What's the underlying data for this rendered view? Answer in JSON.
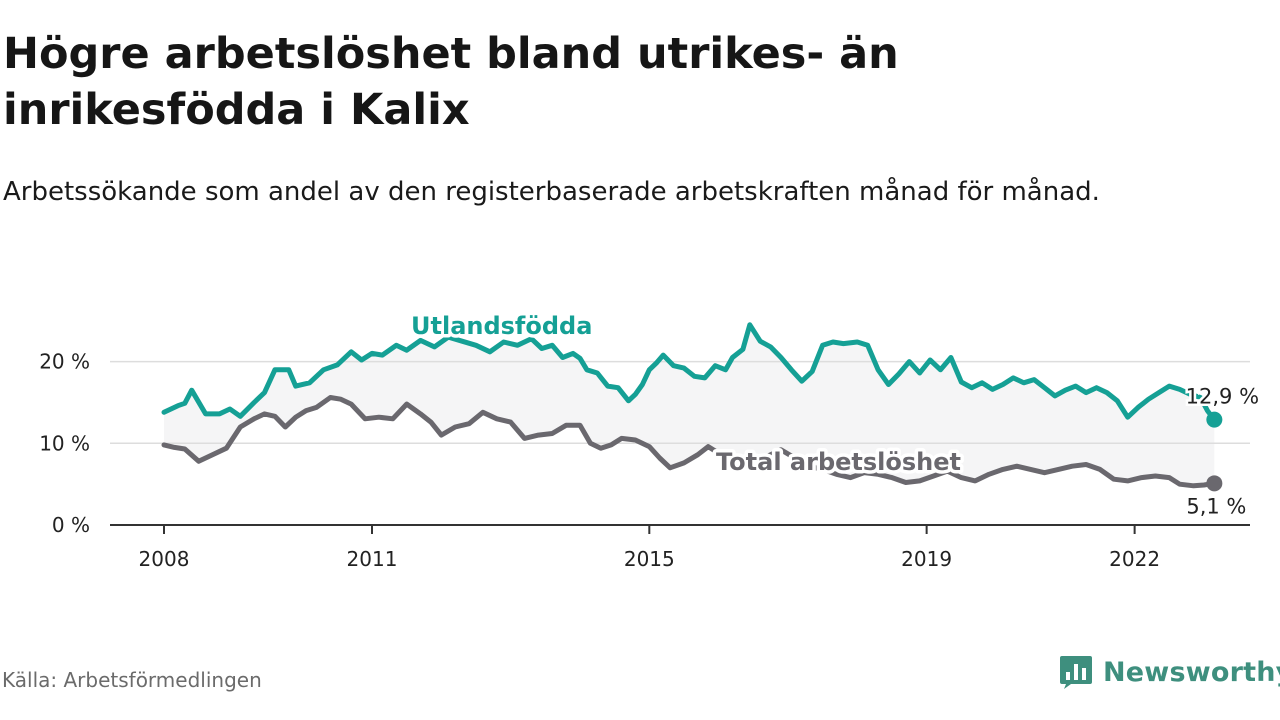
{
  "title": "Högre arbetslöshet bland utrikes- än inrikesfödda i Kalix",
  "subtitle": "Arbetssökande som andel av den registerbaserade arbetskraften månad för månad.",
  "source": "Källa: Arbetsförmedlingen",
  "brand": "Newsworthy",
  "colors": {
    "foreign": "#15A095",
    "total": "#6A686E",
    "band": "#F5F5F6",
    "grid": "#DDDDDD",
    "axis": "#333333",
    "brand": "#3E8F7E"
  },
  "chart_data": {
    "type": "line",
    "title": "Högre arbetslöshet bland utrikes- än inrikesfödda i Kalix",
    "xlabel": "",
    "ylabel": "",
    "xlim": [
      2008,
      2023.15
    ],
    "ylim": [
      0,
      25
    ],
    "x_ticks": [
      2008,
      2011,
      2015,
      2019,
      2022
    ],
    "y_ticks": [
      0,
      10,
      20
    ],
    "y_tick_labels": [
      "0 %",
      "10 %",
      "20 %"
    ],
    "grid": true,
    "series": [
      {
        "name": "Utlandsfödda",
        "key": "foreign",
        "end_label": "12,9 %",
        "points": [
          [
            2008.0,
            13.8
          ],
          [
            2008.2,
            14.6
          ],
          [
            2008.3,
            14.9
          ],
          [
            2008.4,
            16.5
          ],
          [
            2008.6,
            13.6
          ],
          [
            2008.8,
            13.6
          ],
          [
            2008.95,
            14.2
          ],
          [
            2009.1,
            13.3
          ],
          [
            2009.3,
            15.0
          ],
          [
            2009.45,
            16.2
          ],
          [
            2009.6,
            19.0
          ],
          [
            2009.8,
            19.0
          ],
          [
            2009.9,
            17.0
          ],
          [
            2010.1,
            17.4
          ],
          [
            2010.3,
            19.0
          ],
          [
            2010.5,
            19.6
          ],
          [
            2010.7,
            21.2
          ],
          [
            2010.85,
            20.2
          ],
          [
            2011.0,
            21.0
          ],
          [
            2011.15,
            20.8
          ],
          [
            2011.35,
            22.0
          ],
          [
            2011.5,
            21.4
          ],
          [
            2011.7,
            22.6
          ],
          [
            2011.9,
            21.8
          ],
          [
            2012.1,
            23.0
          ],
          [
            2012.3,
            22.5
          ],
          [
            2012.5,
            22.0
          ],
          [
            2012.7,
            21.2
          ],
          [
            2012.9,
            22.4
          ],
          [
            2013.1,
            22.0
          ],
          [
            2013.3,
            22.8
          ],
          [
            2013.45,
            21.6
          ],
          [
            2013.6,
            22.0
          ],
          [
            2013.75,
            20.5
          ],
          [
            2013.9,
            21.0
          ],
          [
            2014.0,
            20.4
          ],
          [
            2014.1,
            19.0
          ],
          [
            2014.25,
            18.6
          ],
          [
            2014.4,
            17.0
          ],
          [
            2014.55,
            16.8
          ],
          [
            2014.7,
            15.2
          ],
          [
            2014.8,
            16.0
          ],
          [
            2014.9,
            17.2
          ],
          [
            2015.0,
            19.0
          ],
          [
            2015.1,
            19.8
          ],
          [
            2015.2,
            20.8
          ],
          [
            2015.35,
            19.5
          ],
          [
            2015.5,
            19.2
          ],
          [
            2015.65,
            18.2
          ],
          [
            2015.8,
            18.0
          ],
          [
            2015.95,
            19.5
          ],
          [
            2016.1,
            19.0
          ],
          [
            2016.2,
            20.5
          ],
          [
            2016.35,
            21.5
          ],
          [
            2016.45,
            24.5
          ],
          [
            2016.6,
            22.5
          ],
          [
            2016.75,
            21.8
          ],
          [
            2016.9,
            20.5
          ],
          [
            2017.05,
            19.0
          ],
          [
            2017.2,
            17.6
          ],
          [
            2017.35,
            18.8
          ],
          [
            2017.5,
            22.0
          ],
          [
            2017.65,
            22.4
          ],
          [
            2017.8,
            22.2
          ],
          [
            2018.0,
            22.4
          ],
          [
            2018.15,
            22.0
          ],
          [
            2018.3,
            19.0
          ],
          [
            2018.45,
            17.2
          ],
          [
            2018.6,
            18.5
          ],
          [
            2018.75,
            20.0
          ],
          [
            2018.9,
            18.6
          ],
          [
            2019.05,
            20.2
          ],
          [
            2019.2,
            19.0
          ],
          [
            2019.35,
            20.5
          ],
          [
            2019.5,
            17.5
          ],
          [
            2019.65,
            16.8
          ],
          [
            2019.8,
            17.4
          ],
          [
            2019.95,
            16.6
          ],
          [
            2020.1,
            17.2
          ],
          [
            2020.25,
            18.0
          ],
          [
            2020.4,
            17.4
          ],
          [
            2020.55,
            17.8
          ],
          [
            2020.7,
            16.8
          ],
          [
            2020.85,
            15.8
          ],
          [
            2021.0,
            16.5
          ],
          [
            2021.15,
            17.0
          ],
          [
            2021.3,
            16.2
          ],
          [
            2021.45,
            16.8
          ],
          [
            2021.6,
            16.2
          ],
          [
            2021.75,
            15.2
          ],
          [
            2021.9,
            13.2
          ],
          [
            2022.05,
            14.4
          ],
          [
            2022.2,
            15.4
          ],
          [
            2022.35,
            16.2
          ],
          [
            2022.5,
            17.0
          ],
          [
            2022.65,
            16.6
          ],
          [
            2022.8,
            16.0
          ],
          [
            2022.95,
            15.6
          ],
          [
            2023.05,
            14.0
          ],
          [
            2023.15,
            12.9
          ]
        ]
      },
      {
        "name": "Total arbetslöshet",
        "key": "total",
        "end_label": "5,1 %",
        "points": [
          [
            2008.0,
            9.8
          ],
          [
            2008.15,
            9.5
          ],
          [
            2008.3,
            9.3
          ],
          [
            2008.5,
            7.8
          ],
          [
            2008.7,
            8.6
          ],
          [
            2008.9,
            9.4
          ],
          [
            2009.1,
            12.0
          ],
          [
            2009.3,
            13.0
          ],
          [
            2009.45,
            13.6
          ],
          [
            2009.6,
            13.3
          ],
          [
            2009.75,
            12.0
          ],
          [
            2009.9,
            13.2
          ],
          [
            2010.05,
            14.0
          ],
          [
            2010.2,
            14.4
          ],
          [
            2010.4,
            15.6
          ],
          [
            2010.55,
            15.4
          ],
          [
            2010.7,
            14.8
          ],
          [
            2010.9,
            13.0
          ],
          [
            2011.1,
            13.2
          ],
          [
            2011.3,
            13.0
          ],
          [
            2011.5,
            14.8
          ],
          [
            2011.7,
            13.6
          ],
          [
            2011.85,
            12.6
          ],
          [
            2012.0,
            11.0
          ],
          [
            2012.2,
            12.0
          ],
          [
            2012.4,
            12.4
          ],
          [
            2012.6,
            13.8
          ],
          [
            2012.8,
            13.0
          ],
          [
            2013.0,
            12.6
          ],
          [
            2013.2,
            10.6
          ],
          [
            2013.4,
            11.0
          ],
          [
            2013.6,
            11.2
          ],
          [
            2013.8,
            12.2
          ],
          [
            2014.0,
            12.2
          ],
          [
            2014.15,
            10.0
          ],
          [
            2014.3,
            9.4
          ],
          [
            2014.45,
            9.8
          ],
          [
            2014.6,
            10.6
          ],
          [
            2014.8,
            10.4
          ],
          [
            2015.0,
            9.6
          ],
          [
            2015.15,
            8.2
          ],
          [
            2015.3,
            7.0
          ],
          [
            2015.5,
            7.6
          ],
          [
            2015.7,
            8.6
          ],
          [
            2015.85,
            9.6
          ],
          [
            2016.0,
            8.8
          ],
          [
            2016.15,
            8.2
          ],
          [
            2016.3,
            7.0
          ],
          [
            2016.5,
            7.4
          ],
          [
            2016.7,
            8.4
          ],
          [
            2016.9,
            9.2
          ],
          [
            2017.1,
            8.2
          ],
          [
            2017.3,
            7.2
          ],
          [
            2017.5,
            6.8
          ],
          [
            2017.7,
            6.2
          ],
          [
            2017.9,
            5.8
          ],
          [
            2018.1,
            6.4
          ],
          [
            2018.3,
            6.2
          ],
          [
            2018.5,
            5.8
          ],
          [
            2018.7,
            5.2
          ],
          [
            2018.9,
            5.4
          ],
          [
            2019.1,
            6.0
          ],
          [
            2019.3,
            6.6
          ],
          [
            2019.5,
            5.8
          ],
          [
            2019.7,
            5.4
          ],
          [
            2019.9,
            6.2
          ],
          [
            2020.1,
            6.8
          ],
          [
            2020.3,
            7.2
          ],
          [
            2020.5,
            6.8
          ],
          [
            2020.7,
            6.4
          ],
          [
            2020.9,
            6.8
          ],
          [
            2021.1,
            7.2
          ],
          [
            2021.3,
            7.4
          ],
          [
            2021.5,
            6.8
          ],
          [
            2021.7,
            5.6
          ],
          [
            2021.9,
            5.4
          ],
          [
            2022.1,
            5.8
          ],
          [
            2022.3,
            6.0
          ],
          [
            2022.5,
            5.8
          ],
          [
            2022.65,
            5.0
          ],
          [
            2022.85,
            4.8
          ],
          [
            2023.0,
            4.9
          ],
          [
            2023.15,
            5.1
          ]
        ]
      }
    ]
  }
}
